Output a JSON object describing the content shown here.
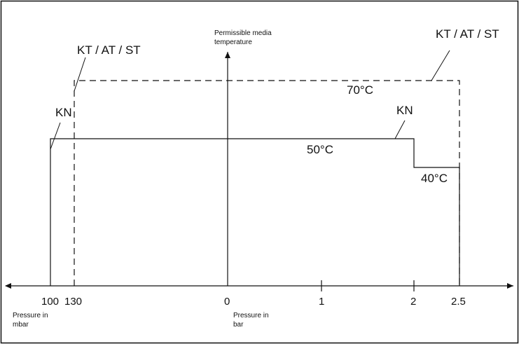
{
  "labels": {
    "y_axis_title": [
      "Permissible media",
      "temperature"
    ],
    "x_left_unit": [
      "Pressure in",
      "mbar"
    ],
    "x_right_unit": [
      "Pressure in",
      "bar"
    ],
    "kt_at_st_left": "KT / AT / ST",
    "kt_at_st_right": "KT / AT / ST",
    "kn_left": "KN",
    "kn_right": "KN",
    "temp_70": "70°C",
    "temp_50": "50°C",
    "temp_40": "40°C"
  },
  "ticks": [
    "100",
    "130",
    "0",
    "1",
    "2",
    "2.5"
  ],
  "chart_data": {
    "type": "diagram",
    "series": [
      {
        "name": "KT / AT / ST",
        "style": "dashed",
        "segments": [
          {
            "from": "130 mbar",
            "to": "2.5 bar",
            "temperature": "70°C"
          }
        ]
      },
      {
        "name": "KN",
        "style": "solid",
        "segments": [
          {
            "from": "100 mbar",
            "to": "2 bar",
            "temperature": "50°C"
          },
          {
            "from": "2 bar",
            "to": "2.5 bar",
            "temperature": "40°C"
          }
        ]
      }
    ]
  },
  "colors": {
    "line": "#111111",
    "frame": "#111111",
    "background": "#ffffff"
  }
}
